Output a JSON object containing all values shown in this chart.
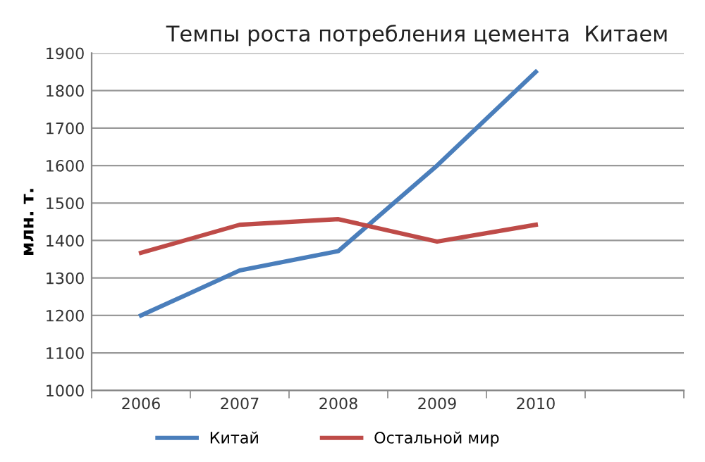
{
  "chart_data": {
    "type": "line",
    "title": "Темпы роста потребления цемента  Китаем",
    "ylabel": "млн. т.",
    "categories": [
      "2006",
      "2007",
      "2008",
      "2009",
      "2010",
      null
    ],
    "series": [
      {
        "name": "Китай",
        "color": "#4a7ebb",
        "values": [
          1200,
          1320,
          1372,
          1600,
          1850,
          null
        ]
      },
      {
        "name": "Остальной мир",
        "color": "#be4b48",
        "values": [
          1367,
          1442,
          1457,
          1397,
          1442,
          null
        ]
      }
    ],
    "ylim": [
      1000,
      1900
    ],
    "yticks": [
      1000,
      1100,
      1200,
      1300,
      1400,
      1500,
      1600,
      1700,
      1800,
      1900
    ],
    "grid": "y",
    "legend": "bottom",
    "marker": "none",
    "line_style": "solid"
  }
}
